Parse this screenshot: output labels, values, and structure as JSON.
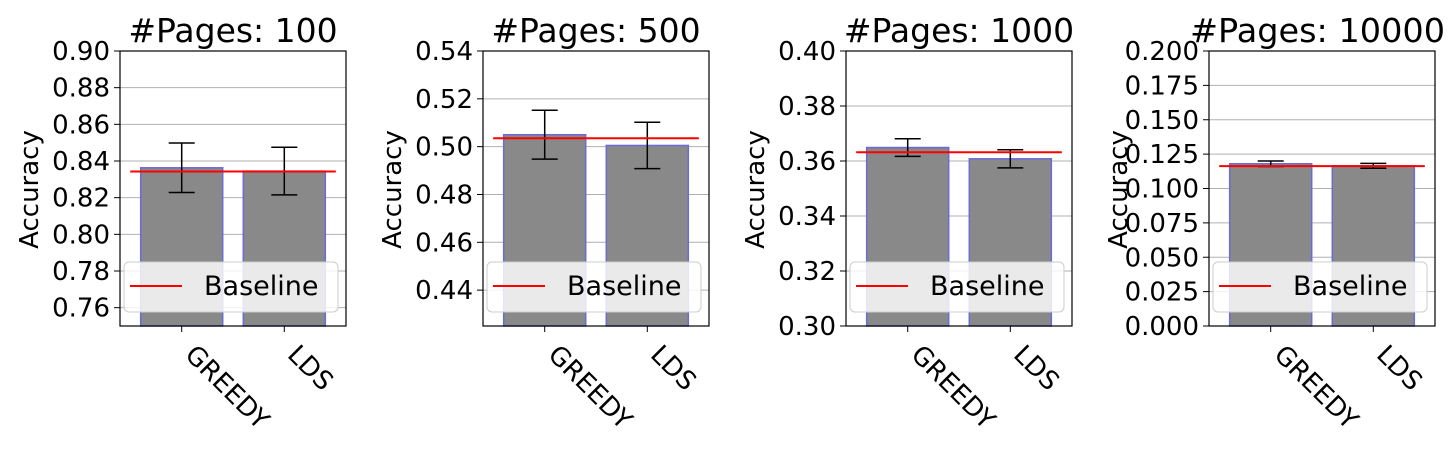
{
  "chart_data": [
    {
      "type": "bar",
      "title": "#Pages: 100",
      "ylabel": "Accuracy",
      "categories": [
        "GREEDY",
        "LDS"
      ],
      "values": [
        0.8363,
        0.8345
      ],
      "errors": [
        0.0135,
        0.013
      ],
      "baseline": 0.8343,
      "ylim": [
        0.75,
        0.9
      ],
      "yticks": [
        "0.76",
        "0.78",
        "0.80",
        "0.82",
        "0.84",
        "0.86",
        "0.88",
        "0.90"
      ],
      "legend": "Baseline",
      "grid": "y"
    },
    {
      "type": "bar",
      "title": "#Pages: 500",
      "ylabel": "Accuracy",
      "categories": [
        "GREEDY",
        "LDS"
      ],
      "values": [
        0.505,
        0.5005
      ],
      "errors": [
        0.0102,
        0.0097
      ],
      "baseline": 0.5035,
      "ylim": [
        0.425,
        0.54
      ],
      "yticks": [
        "0.44",
        "0.46",
        "0.48",
        "0.50",
        "0.52",
        "0.54"
      ],
      "legend": "Baseline",
      "grid": "y"
    },
    {
      "type": "bar",
      "title": "#Pages: 1000",
      "ylabel": "Accuracy",
      "categories": [
        "GREEDY",
        "LDS"
      ],
      "values": [
        0.3649,
        0.3608
      ],
      "errors": [
        0.0032,
        0.0033
      ],
      "baseline": 0.3632,
      "ylim": [
        0.3,
        0.4
      ],
      "yticks": [
        "0.30",
        "0.32",
        "0.34",
        "0.36",
        "0.38",
        "0.40"
      ],
      "legend": "Baseline",
      "grid": "y"
    },
    {
      "type": "bar",
      "title": "#Pages: 10000",
      "ylabel": "Accuracy",
      "categories": [
        "GREEDY",
        "LDS"
      ],
      "values": [
        0.118,
        0.1165
      ],
      "errors": [
        0.002,
        0.0018
      ],
      "baseline": 0.1163,
      "ylim": [
        0.0,
        0.2
      ],
      "yticks": [
        "0.000",
        "0.025",
        "0.050",
        "0.075",
        "0.100",
        "0.125",
        "0.150",
        "0.175",
        "0.200"
      ],
      "legend": "Baseline",
      "grid": "y"
    }
  ],
  "colors": {
    "bar_fill": "#898989",
    "bar_edge": "#6b6bd8",
    "baseline": "#ff0000",
    "grid": "#b0b0b0",
    "error_bar": "#000000"
  }
}
